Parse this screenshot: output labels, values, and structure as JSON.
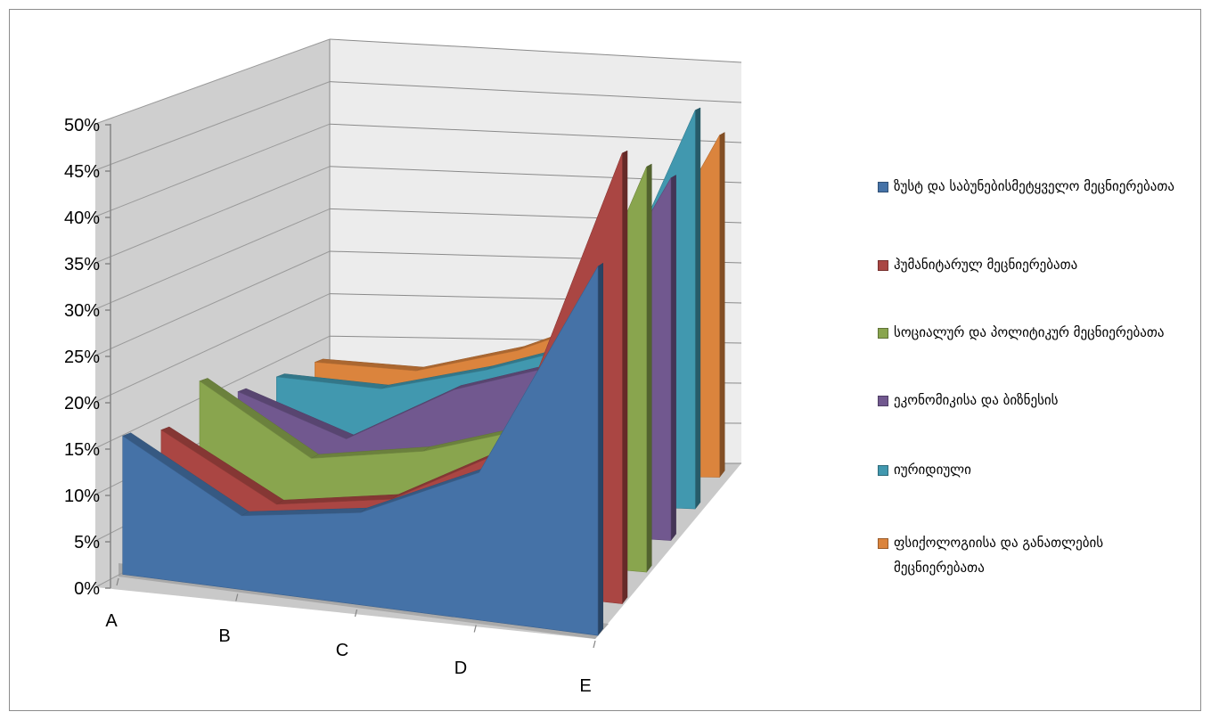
{
  "chart_data": {
    "type": "area",
    "projection": "3d",
    "categories": [
      "A",
      "B",
      "C",
      "D",
      "E"
    ],
    "y_ticks": [
      "0%",
      "5%",
      "10%",
      "15%",
      "20%",
      "25%",
      "30%",
      "35%",
      "40%",
      "45%",
      "50%"
    ],
    "ylim": [
      0,
      50
    ],
    "grid": true,
    "legend_position": "right",
    "series": [
      {
        "name": "ზუსტ და საბუნებისმეტყველო მეცნიერებათა",
        "color": "#4572a7",
        "values": [
          15,
          8,
          10,
          16,
          40
        ]
      },
      {
        "name": "ჰუმანიტარულ მეცნიერებათა",
        "color": "#aa4643",
        "values": [
          14,
          7,
          9,
          16,
          51
        ]
      },
      {
        "name": "სოციალურ და პოლიტიკურ მეცნიერებათა",
        "color": "#89a54e",
        "values": [
          18,
          10,
          12,
          16,
          48
        ]
      },
      {
        "name": "ეკონომიკისა და ბიზნესის",
        "color": "#71588f",
        "values": [
          15,
          10,
          17,
          21,
          45
        ]
      },
      {
        "name": "იურიდიული",
        "color": "#4198af",
        "values": [
          15,
          14,
          17,
          21,
          52
        ]
      },
      {
        "name": "ფსიქოლოგიისა და განათლების მეცნიერებათა",
        "color": "#db843d",
        "values": [
          15,
          14,
          17,
          22,
          47
        ]
      }
    ]
  }
}
